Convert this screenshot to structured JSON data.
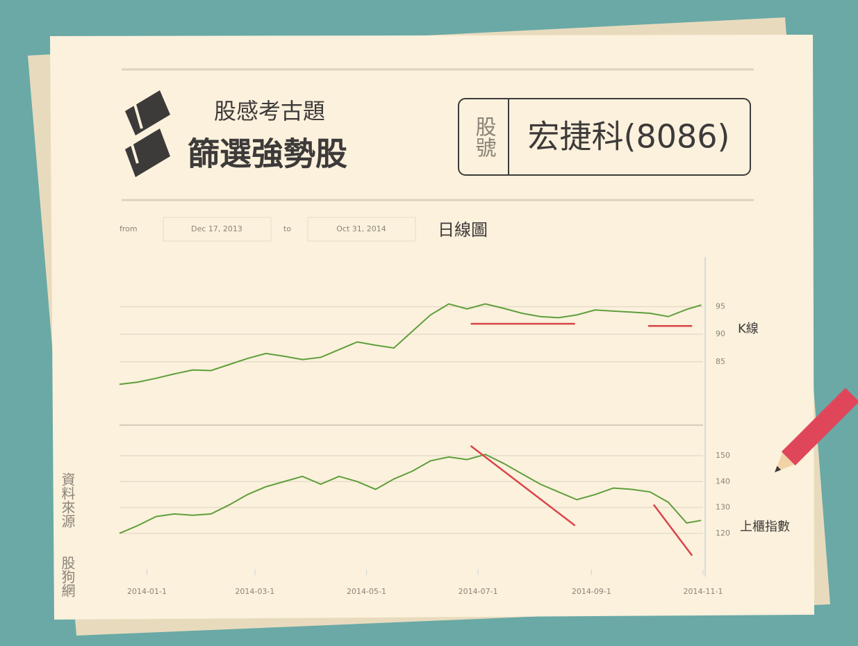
{
  "header": {
    "brand": "股感考古題",
    "title": "篩選強勢股",
    "code_label": "股號",
    "stock": "宏捷科(8086)"
  },
  "filters": {
    "from_label": "from",
    "from": "Dec 17, 2013",
    "to_label": "to",
    "to": "Oct 31, 2014",
    "view": "日線圖"
  },
  "source": [
    "資料來源",
    "股狗網"
  ],
  "chart_data": [
    {
      "type": "line",
      "series": [
        {
          "name": "K線",
          "color": "#5f9e3c",
          "values": [
            80.9,
            81.3,
            82,
            82.8,
            83.5,
            83.4,
            84.5,
            85.6,
            86.5,
            86,
            85.4,
            85.8,
            87.2,
            88.6,
            88,
            87.5,
            90.5,
            93.5,
            95.5,
            94.6,
            95.5,
            94.7,
            93.8,
            93.2,
            93,
            93.5,
            94.4,
            94.2,
            94,
            93.8,
            93.2,
            94.5,
            95.3
          ]
        }
      ],
      "x": [
        "2013-12-17",
        "2013-12-27",
        "2014-01-06",
        "2014-01-16",
        "2014-01-26",
        "2014-02-05",
        "2014-02-15",
        "2014-02-25",
        "2014-03-07",
        "2014-03-17",
        "2014-03-27",
        "2014-04-06",
        "2014-04-16",
        "2014-04-26",
        "2014-05-06",
        "2014-05-16",
        "2014-05-26",
        "2014-06-05",
        "2014-06-15",
        "2014-06-25",
        "2014-07-05",
        "2014-07-15",
        "2014-07-25",
        "2014-08-04",
        "2014-08-14",
        "2014-08-24",
        "2014-09-03",
        "2014-09-13",
        "2014-09-23",
        "2014-10-03",
        "2014-10-13",
        "2014-10-23",
        "2014-10-31"
      ],
      "xlim": [
        "2013-12-17",
        "2014-11-01"
      ],
      "ylim": [
        74,
        102
      ],
      "yticks": [
        95,
        90,
        85
      ],
      "grid": true,
      "trendlines": [
        {
          "x": [
            "2014-06-27",
            "2014-08-23"
          ],
          "values": [
            91.9,
            91.9
          ],
          "color": "#d9434a"
        },
        {
          "x": [
            "2014-10-02",
            "2014-10-26"
          ],
          "values": [
            91.5,
            91.5
          ],
          "color": "#d9434a"
        }
      ]
    },
    {
      "type": "line",
      "series": [
        {
          "name": "上櫃指數",
          "color": "#5f9e3c",
          "values": [
            120,
            123,
            126.5,
            127.5,
            127,
            127.5,
            131,
            135,
            138,
            140,
            142,
            139,
            142,
            140,
            137,
            141,
            144,
            148,
            149.5,
            148.5,
            150.5,
            147,
            143,
            139,
            136,
            133,
            135,
            137.5,
            137,
            136,
            132,
            124,
            125
          ]
        }
      ],
      "x": [
        "2013-12-17",
        "2013-12-27",
        "2014-01-06",
        "2014-01-16",
        "2014-01-26",
        "2014-02-05",
        "2014-02-15",
        "2014-02-25",
        "2014-03-07",
        "2014-03-17",
        "2014-03-27",
        "2014-04-06",
        "2014-04-16",
        "2014-04-26",
        "2014-05-06",
        "2014-05-16",
        "2014-05-26",
        "2014-06-05",
        "2014-06-15",
        "2014-06-25",
        "2014-07-05",
        "2014-07-15",
        "2014-07-25",
        "2014-08-04",
        "2014-08-14",
        "2014-08-24",
        "2014-09-03",
        "2014-09-13",
        "2014-09-23",
        "2014-10-03",
        "2014-10-13",
        "2014-10-23",
        "2014-10-31"
      ],
      "xlim": [
        "2013-12-17",
        "2014-11-01"
      ],
      "ylim": [
        106,
        161
      ],
      "yticks": [
        150,
        140,
        130,
        120
      ],
      "grid": true,
      "xticks": [
        {
          "value": "2014-01-01",
          "label": "2014-01-1"
        },
        {
          "value": "2014-03-01",
          "label": "2014-03-1"
        },
        {
          "value": "2014-05-01",
          "label": "2014-05-1"
        },
        {
          "value": "2014-07-01",
          "label": "2014-07-1"
        },
        {
          "value": "2014-09-01",
          "label": "2014-09-1"
        },
        {
          "value": "2014-11-01",
          "label": "2014-11-1"
        }
      ],
      "trendlines": [
        {
          "x": [
            "2014-06-27",
            "2014-08-23"
          ],
          "values": [
            153.8,
            123
          ],
          "color": "#d9434a"
        },
        {
          "x": [
            "2014-10-05",
            "2014-10-26"
          ],
          "values": [
            131.1,
            111.4
          ],
          "color": "#d9434a"
        }
      ]
    }
  ]
}
